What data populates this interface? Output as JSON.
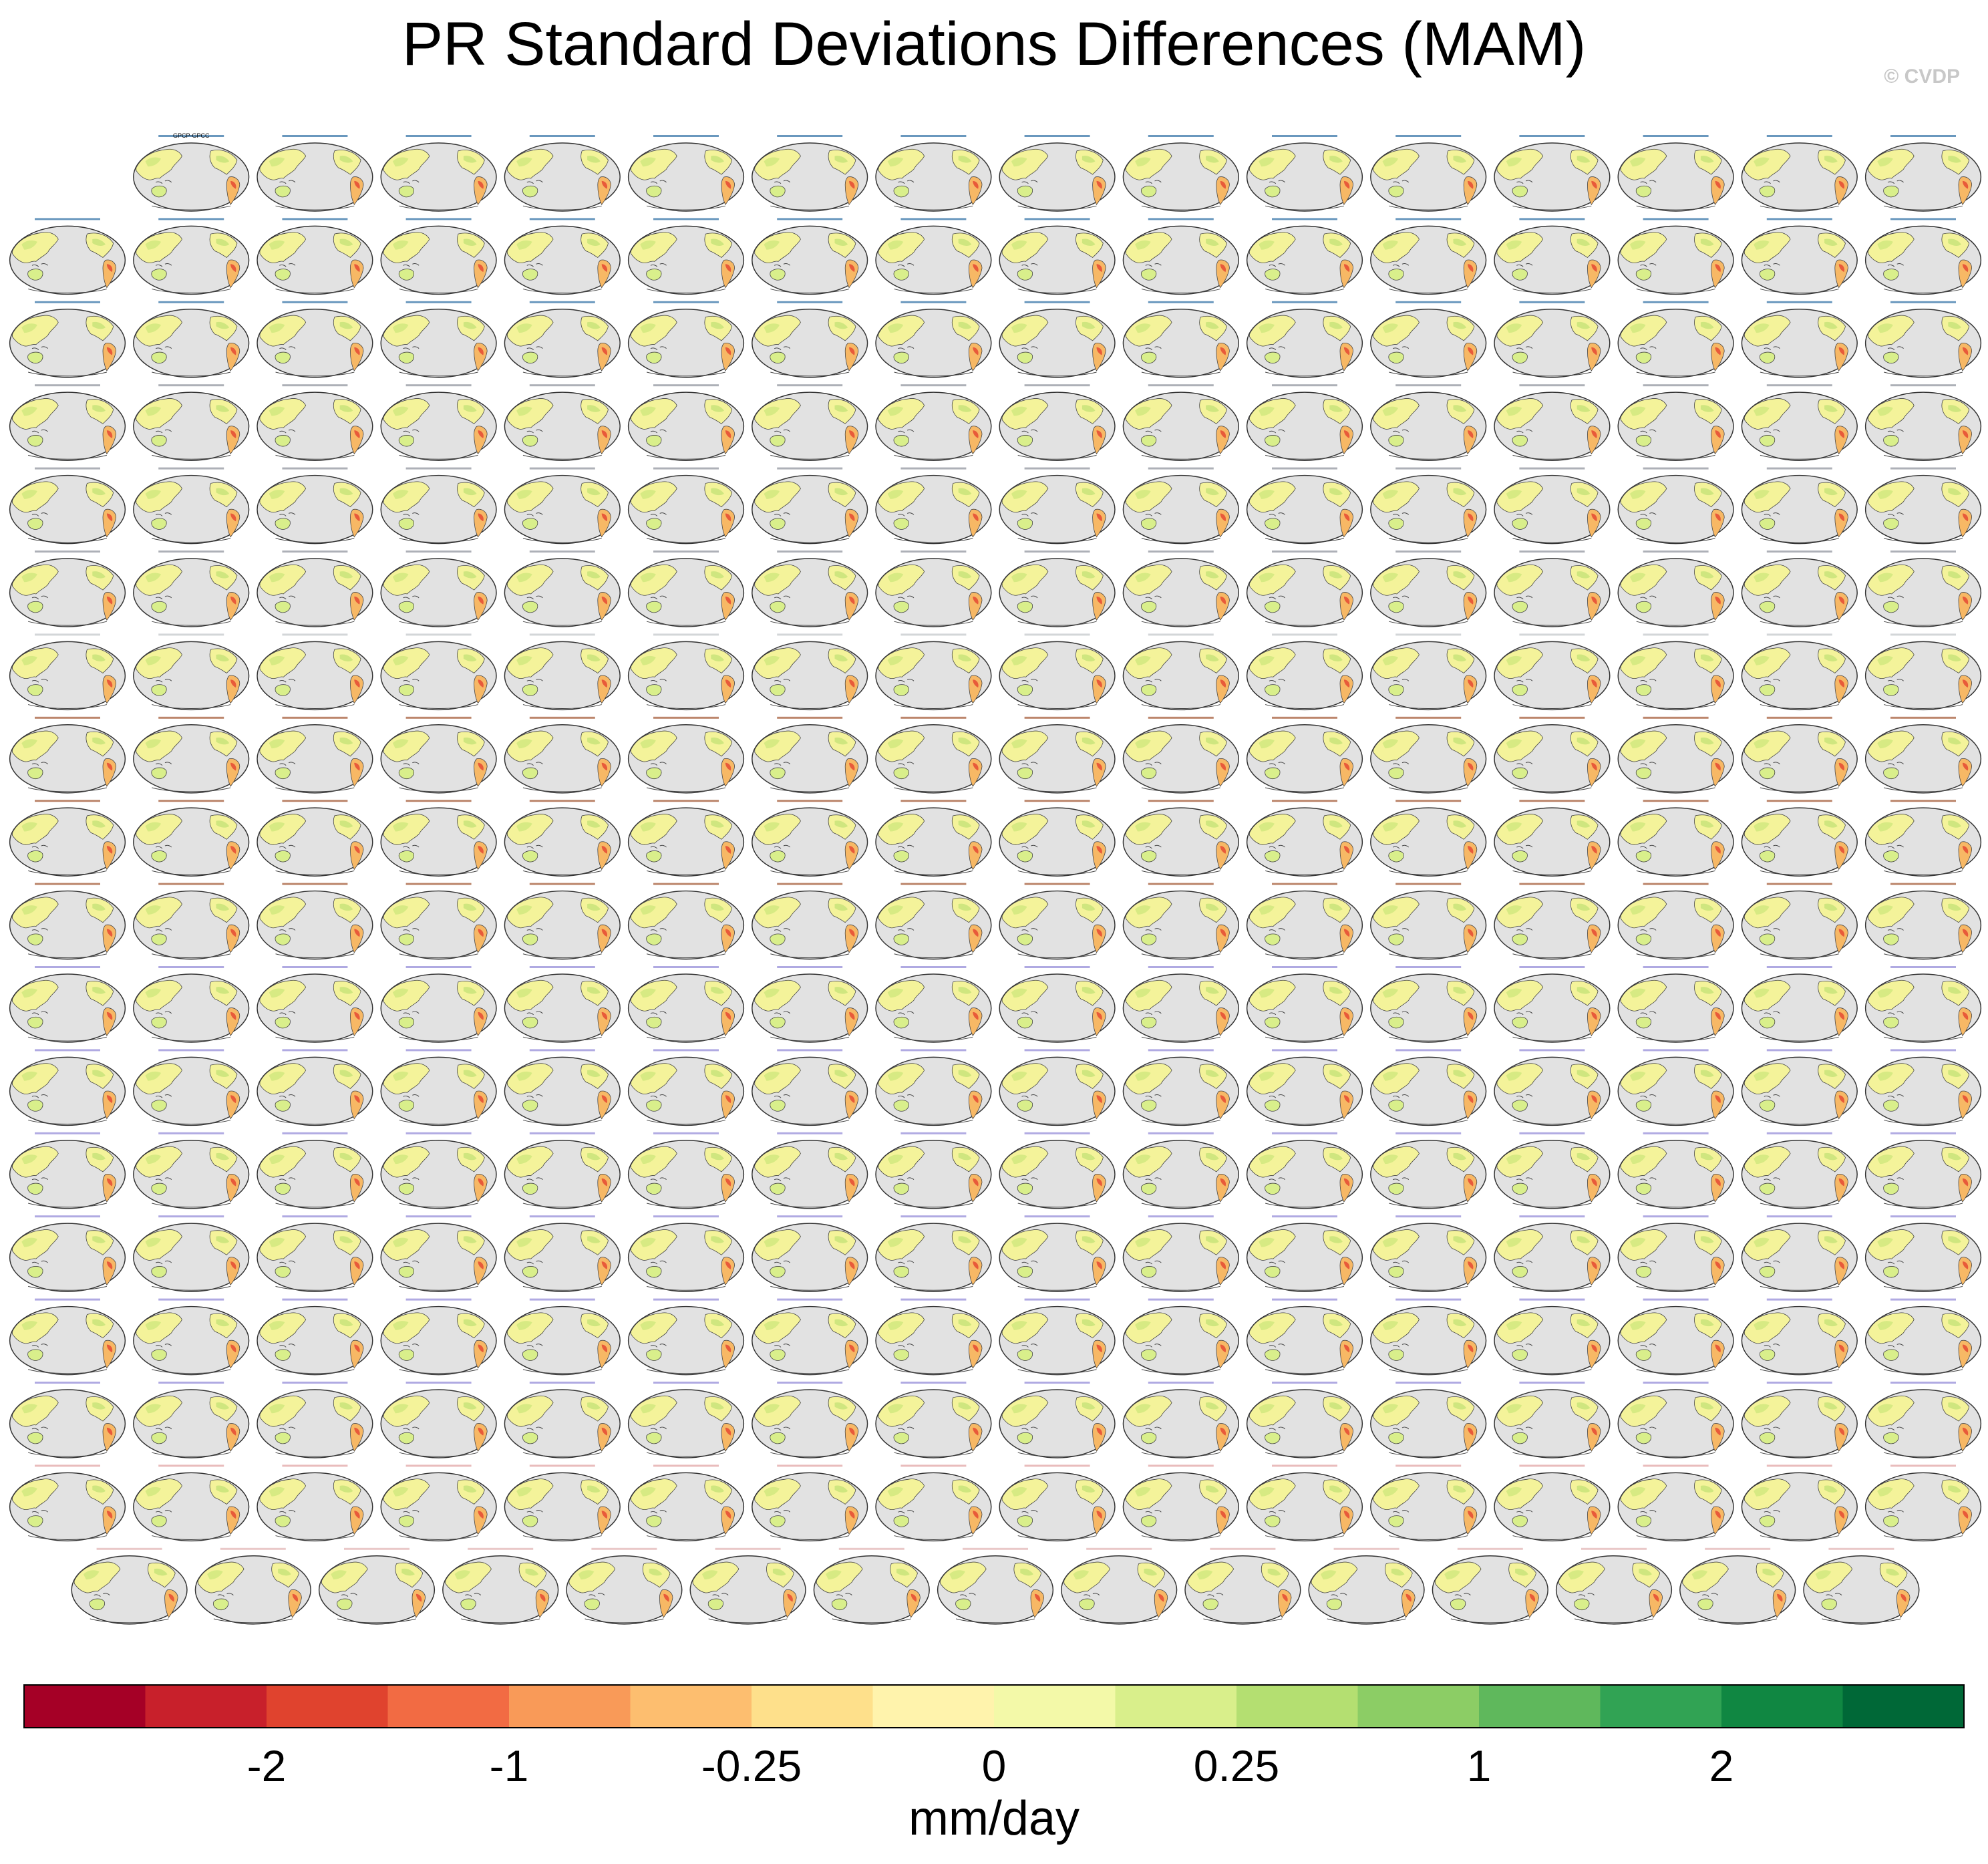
{
  "title": "PR Standard Deviations Differences (MAM)",
  "watermark": "© CVDP",
  "chart_data": {
    "type": "heatmap",
    "title": "PR Standard Deviations Differences (MAM)",
    "layout": "small-multiple global maps, 17 rows (16 full rows of 16 panels plus partial rows)",
    "panel_title_example": "GPCP-GPCC",
    "colorbar": {
      "units": "mm/day",
      "tick_labels": [
        "-2",
        "-1",
        "-0.25",
        "0",
        "0.25",
        "1",
        "2"
      ],
      "colors": [
        "#a50026",
        "#c8202b",
        "#e0432e",
        "#f26b43",
        "#f99a58",
        "#fdbe6f",
        "#fee08b",
        "#fff3ac",
        "#f3f9a8",
        "#d9ef8b",
        "#b4df71",
        "#8ccd65",
        "#5fb85c",
        "#31a354",
        "#108742",
        "#006837"
      ]
    }
  }
}
